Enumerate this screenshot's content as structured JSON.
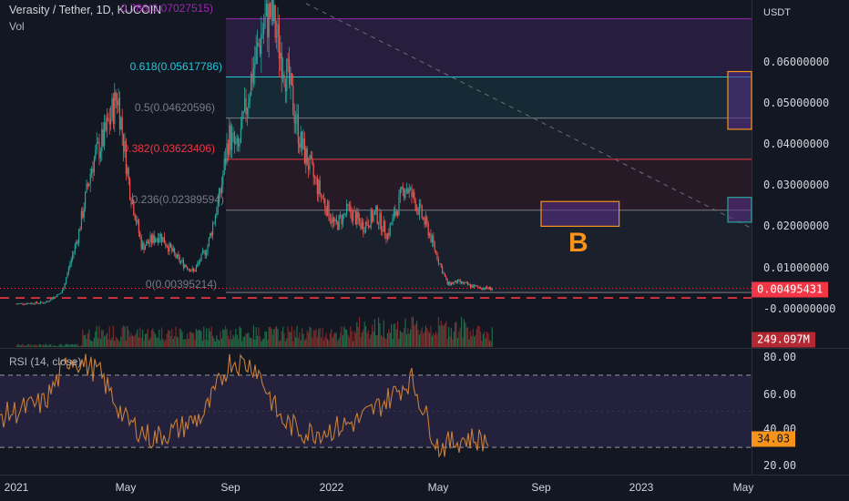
{
  "header": {
    "title": "Verasity / Tether, 1D, KUCOIN",
    "subtitle": "Vol"
  },
  "price_axis": {
    "unit": "USDT",
    "ticks": [
      "0.06000000",
      "0.05000000",
      "0.04000000",
      "0.03000000",
      "0.02000000",
      "0.01000000",
      "-0.00000000"
    ]
  },
  "badges": {
    "last_price": "0.00495431",
    "volume": "249.097M",
    "rsi": "34.03"
  },
  "rsi": {
    "label": "RSI (14, close)",
    "ticks": [
      "80.00",
      "60.00",
      "40.00",
      "20.00"
    ]
  },
  "time_axis": {
    "labels": [
      "2021",
      "May",
      "Sep",
      "2022",
      "May",
      "Sep",
      "2023",
      "May"
    ]
  },
  "annotation": {
    "label": "B"
  },
  "fib_levels": [
    {
      "ratio": "0.786",
      "price": "0.07027515",
      "text": "0.786(0.07027515)",
      "color": "#9c27b0"
    },
    {
      "ratio": "0.618",
      "price": "0.05617786",
      "text": "0.618(0.05617786)",
      "color": "#26c6da"
    },
    {
      "ratio": "0.5",
      "price": "0.04620596",
      "text": "0.5(0.04620596)",
      "color": "#787b86"
    },
    {
      "ratio": "0.382",
      "price": "0.03623406",
      "text": "0.382(0.03623406)",
      "color": "#f23645"
    },
    {
      "ratio": "0.236",
      "price": "0.02389594",
      "text": "0.236(0.02389594)",
      "color": "#787b86"
    },
    {
      "ratio": "0",
      "price": "0.00395214",
      "text": "0(0.00395214)",
      "color": "#787b86"
    }
  ],
  "colors": {
    "background": "#131722",
    "up": "#26a69a",
    "down": "#ef5350",
    "rsi_line": "#c87f3a",
    "rsi_band": "#7e57c2",
    "highlight": "#f7931a"
  },
  "chart_data": {
    "type": "candlestick",
    "symbol": "Verasity / Tether",
    "interval": "1D",
    "exchange": "KUCOIN",
    "x_axis_labels": [
      "2021",
      "May",
      "Sep",
      "2022",
      "May",
      "Sep",
      "2023",
      "May"
    ],
    "y_range": [
      -0.004,
      0.074
    ],
    "y_scale": "linear",
    "price_series": {
      "x": [
        "2021-01-01",
        "2021-02-01",
        "2021-02-20",
        "2021-03-10",
        "2021-03-25",
        "2021-04-08",
        "2021-04-22",
        "2021-05-05",
        "2021-05-20",
        "2021-06-10",
        "2021-07-01",
        "2021-07-20",
        "2021-08-05",
        "2021-08-20",
        "2021-08-30",
        "2021-09-10",
        "2021-09-25",
        "2021-10-10",
        "2021-10-20",
        "2021-10-28",
        "2021-11-10",
        "2021-11-25",
        "2021-12-10",
        "2021-12-25",
        "2022-01-05",
        "2022-01-20",
        "2022-02-05",
        "2022-02-20",
        "2022-03-05",
        "2022-03-25",
        "2022-04-05",
        "2022-04-20",
        "2022-05-01",
        "2022-05-12",
        "2022-05-25",
        "2022-06-10",
        "2022-06-25",
        "2022-07-05"
      ],
      "close": [
        0.0012,
        0.0015,
        0.004,
        0.018,
        0.035,
        0.042,
        0.052,
        0.03,
        0.015,
        0.018,
        0.012,
        0.009,
        0.015,
        0.028,
        0.042,
        0.038,
        0.055,
        0.068,
        0.072,
        0.065,
        0.055,
        0.04,
        0.032,
        0.025,
        0.02,
        0.024,
        0.02,
        0.023,
        0.018,
        0.03,
        0.026,
        0.019,
        0.012,
        0.006,
        0.0065,
        0.0055,
        0.005,
        0.00495
      ]
    },
    "rsi_series": {
      "name": "RSI (14, close)",
      "x": [
        "2021-01-01",
        "2021-02-01",
        "2021-03-01",
        "2021-04-01",
        "2021-05-01",
        "2021-06-01",
        "2021-07-01",
        "2021-08-01",
        "2021-09-01",
        "2021-10-01",
        "2021-11-01",
        "2021-12-01",
        "2022-01-01",
        "2022-02-01",
        "2022-03-01",
        "2022-04-01",
        "2022-05-01",
        "2022-06-01",
        "2022-07-01"
      ],
      "values": [
        50,
        55,
        80,
        72,
        45,
        35,
        40,
        48,
        78,
        75,
        45,
        38,
        40,
        45,
        55,
        68,
        30,
        35,
        34.03
      ],
      "y_range": [
        20,
        85
      ],
      "bands": [
        30,
        70
      ]
    },
    "fib_levels": [
      {
        "ratio": 0.786,
        "price": 0.07027515
      },
      {
        "ratio": 0.618,
        "price": 0.05617786
      },
      {
        "ratio": 0.5,
        "price": 0.04620596
      },
      {
        "ratio": 0.382,
        "price": 0.03623406
      },
      {
        "ratio": 0.236,
        "price": 0.02389594
      },
      {
        "ratio": 0,
        "price": 0.00395214
      }
    ],
    "horizontal_line": 0.00395214,
    "last_price": 0.00495431,
    "last_volume": "249.097M",
    "last_rsi": 34.03,
    "annotations": [
      {
        "label": "B",
        "box_price_range": [
          0.02,
          0.026
        ],
        "box_dates": [
          "2022-09-01",
          "2022-12-05"
        ]
      },
      {
        "label": "",
        "box_price_range": [
          0.0435,
          0.0575
        ],
        "box_dates": [
          "2023-05-01",
          "2023-05-31"
        ]
      },
      {
        "label": "",
        "box_price_range": [
          0.021,
          0.027
        ],
        "box_dates": [
          "2023-05-01",
          "2023-05-31"
        ]
      }
    ],
    "trendline": {
      "from": [
        "2021-12-01",
        0.074
      ],
      "to": [
        "2023-05-31",
        0.0195
      ],
      "style": "dashed"
    }
  }
}
